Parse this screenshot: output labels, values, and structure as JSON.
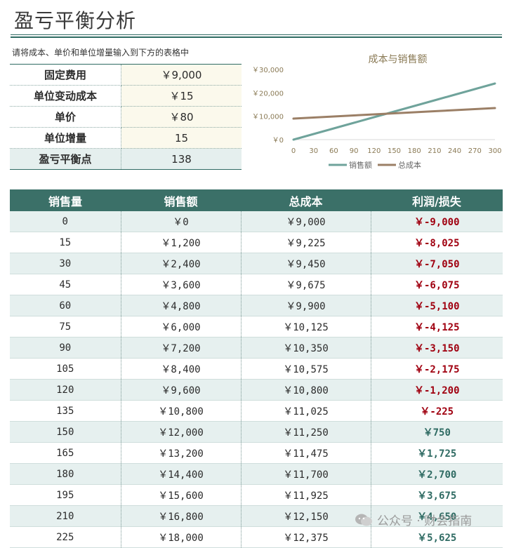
{
  "title": "盈亏平衡分析",
  "instruction": "请将成本、单价和单位增量输入到下方的表格中",
  "inputs": [
    {
      "label": "固定费用",
      "value": "￥9,000"
    },
    {
      "label": "单位变动成本",
      "value": "￥15"
    },
    {
      "label": "单价",
      "value": "￥80"
    },
    {
      "label": "单位增量",
      "value": "15"
    },
    {
      "label": "盈亏平衡点",
      "value": "138"
    }
  ],
  "chart_data": {
    "type": "line",
    "title": "成本与销售额",
    "x": [
      0,
      30,
      60,
      90,
      120,
      150,
      180,
      210,
      240,
      270,
      300
    ],
    "x_tick_labels": [
      "0",
      "30",
      "60",
      "90",
      "120",
      "150",
      "180",
      "210",
      "240",
      "270",
      "300"
    ],
    "y_tick_labels": [
      "￥0",
      "￥10,000",
      "￥20,000",
      "￥30,000"
    ],
    "y_ticks": [
      0,
      10000,
      20000,
      30000
    ],
    "ylim": [
      0,
      30000
    ],
    "xlim": [
      0,
      300
    ],
    "series": [
      {
        "name": "销售额",
        "color": "#6fa39b",
        "values": [
          0,
          2400,
          4800,
          7200,
          9600,
          12000,
          14400,
          16800,
          19200,
          21600,
          24000
        ]
      },
      {
        "name": "总成本",
        "color": "#9b7f66",
        "values": [
          9000,
          9450,
          9900,
          10350,
          10800,
          11250,
          11700,
          12150,
          12600,
          13050,
          13500
        ]
      }
    ],
    "legend_position": "bottom"
  },
  "table": {
    "headers": [
      "销售量",
      "销售额",
      "总成本",
      "利润/损失"
    ],
    "rows": [
      [
        "0",
        "￥0",
        "￥9,000",
        "￥-9,000"
      ],
      [
        "15",
        "￥1,200",
        "￥9,225",
        "￥-8,025"
      ],
      [
        "30",
        "￥2,400",
        "￥9,450",
        "￥-7,050"
      ],
      [
        "45",
        "￥3,600",
        "￥9,675",
        "￥-6,075"
      ],
      [
        "60",
        "￥4,800",
        "￥9,900",
        "￥-5,100"
      ],
      [
        "75",
        "￥6,000",
        "￥10,125",
        "￥-4,125"
      ],
      [
        "90",
        "￥7,200",
        "￥10,350",
        "￥-3,150"
      ],
      [
        "105",
        "￥8,400",
        "￥10,575",
        "￥-2,175"
      ],
      [
        "120",
        "￥9,600",
        "￥10,800",
        "￥-1,200"
      ],
      [
        "135",
        "￥10,800",
        "￥11,025",
        "￥-225"
      ],
      [
        "150",
        "￥12,000",
        "￥11,250",
        "￥750"
      ],
      [
        "165",
        "￥13,200",
        "￥11,475",
        "￥1,725"
      ],
      [
        "180",
        "￥14,400",
        "￥11,700",
        "￥2,700"
      ],
      [
        "195",
        "￥15,600",
        "￥11,925",
        "￥3,675"
      ],
      [
        "210",
        "￥16,800",
        "￥12,150",
        "￥4,650"
      ],
      [
        "225",
        "￥18,000",
        "￥12,375",
        "￥5,625"
      ]
    ]
  },
  "watermark": "公众号 · 财会指南",
  "colors": {
    "accent": "#3b7068",
    "negative": "#a00010",
    "positive": "#2f6b63"
  }
}
